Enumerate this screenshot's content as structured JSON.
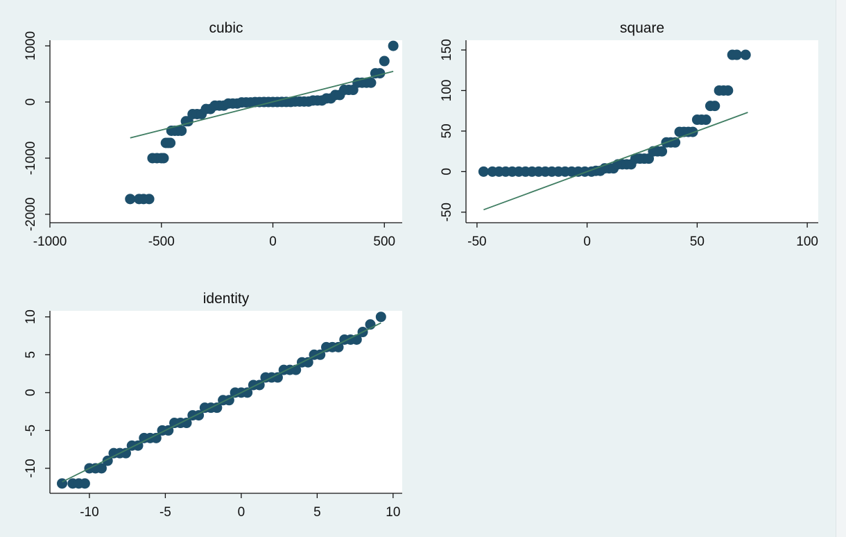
{
  "chart_data": [
    {
      "type": "scatter",
      "title": "cubic",
      "xlim": [
        -1000,
        580
      ],
      "ylim": [
        -2150,
        1100
      ],
      "x_ticks": [
        -1000,
        -500,
        0,
        500
      ],
      "y_ticks": [
        -2000,
        -1000,
        0,
        1000
      ],
      "marker_color": "#1d4f6b",
      "line_color": "#3f7d62",
      "fit_line": {
        "x": [
          -640,
          540
        ],
        "y": [
          -640,
          545
        ]
      },
      "points": {
        "x": [
          -640,
          -600,
          -580,
          -555,
          -540,
          -520,
          -500,
          -490,
          -480,
          -470,
          -460,
          -455,
          -440,
          -425,
          -410,
          -390,
          -380,
          -360,
          -340,
          -320,
          -300,
          -280,
          -260,
          -240,
          -220,
          -200,
          -180,
          -160,
          -140,
          -120,
          -100,
          -80,
          -60,
          -40,
          -20,
          0,
          20,
          40,
          60,
          80,
          100,
          120,
          140,
          160,
          180,
          200,
          220,
          240,
          260,
          280,
          300,
          320,
          340,
          360,
          380,
          400,
          420,
          440,
          460,
          480,
          500,
          540
        ],
        "y": [
          -1728,
          -1728,
          -1728,
          -1728,
          -1000,
          -1000,
          -1000,
          -1000,
          -729,
          -729,
          -729,
          -512,
          -512,
          -512,
          -512,
          -343,
          -343,
          -216,
          -216,
          -216,
          -125,
          -125,
          -64,
          -64,
          -64,
          -27,
          -27,
          -27,
          -8,
          -8,
          -8,
          -1,
          -1,
          0,
          0,
          0,
          0,
          1,
          1,
          1,
          8,
          8,
          8,
          8,
          27,
          27,
          27,
          64,
          64,
          125,
          125,
          216,
          216,
          216,
          343,
          343,
          343,
          343,
          512,
          512,
          729,
          1000
        ]
      }
    },
    {
      "type": "scatter",
      "title": "square",
      "xlim": [
        -55,
        105
      ],
      "ylim": [
        -63,
        162
      ],
      "x_ticks": [
        -50,
        0,
        50,
        100
      ],
      "y_ticks": [
        -50,
        0,
        50,
        100,
        150
      ],
      "marker_color": "#1d4f6b",
      "line_color": "#3f7d62",
      "fit_line": {
        "x": [
          -47,
          73
        ],
        "y": [
          -47,
          73
        ]
      },
      "points": {
        "x": [
          -47,
          -43,
          -40,
          -37,
          -34,
          -31,
          -28,
          -25,
          -22,
          -19,
          -16,
          -13,
          -10,
          -7,
          -4,
          -1,
          2,
          4,
          6,
          8,
          10,
          12,
          14,
          16,
          18,
          20,
          22,
          24,
          26,
          28,
          30,
          32,
          34,
          36,
          38,
          40,
          42,
          44,
          46,
          48,
          50,
          52,
          54,
          56,
          58,
          60,
          62,
          64,
          66,
          68,
          72
        ],
        "y": [
          0,
          0,
          0,
          0,
          0,
          0,
          0,
          0,
          0,
          0,
          0,
          0,
          0,
          0,
          0,
          0,
          0,
          1,
          1,
          4,
          4,
          4,
          9,
          9,
          9,
          9,
          16,
          16,
          16,
          16,
          25,
          25,
          25,
          36,
          36,
          36,
          49,
          49,
          49,
          49,
          64,
          64,
          64,
          81,
          81,
          100,
          100,
          100,
          144,
          144,
          144
        ]
      }
    },
    {
      "type": "scatter",
      "title": "identity",
      "xlim": [
        -12.6,
        10.6
      ],
      "ylim": [
        -13.3,
        10.8
      ],
      "x_ticks": [
        -10,
        -5,
        0,
        5,
        10
      ],
      "y_ticks": [
        -10,
        -5,
        0,
        5,
        10
      ],
      "marker_color": "#1d4f6b",
      "line_color": "#3f7d62",
      "fit_line": {
        "x": [
          -11.8,
          9.2
        ],
        "y": [
          -11.8,
          9.2
        ]
      },
      "points": {
        "x": [
          -11.8,
          -11.1,
          -10.7,
          -10.3,
          -10.0,
          -9.6,
          -9.2,
          -8.8,
          -8.4,
          -8.0,
          -7.6,
          -7.2,
          -6.8,
          -6.4,
          -6.0,
          -5.6,
          -5.2,
          -4.8,
          -4.4,
          -4.0,
          -3.6,
          -3.2,
          -2.8,
          -2.4,
          -2.0,
          -1.6,
          -1.2,
          -0.8,
          -0.4,
          0.0,
          0.4,
          0.8,
          1.2,
          1.6,
          2.0,
          2.4,
          2.8,
          3.2,
          3.6,
          4.0,
          4.4,
          4.8,
          5.2,
          5.6,
          6.0,
          6.4,
          6.8,
          7.2,
          7.6,
          8.0,
          8.5,
          9.2
        ],
        "y": [
          -12,
          -12,
          -12,
          -12,
          -10,
          -10,
          -10,
          -9,
          -8,
          -8,
          -8,
          -7,
          -7,
          -6,
          -6,
          -6,
          -5,
          -5,
          -4,
          -4,
          -4,
          -3,
          -3,
          -2,
          -2,
          -2,
          -1,
          -1,
          0,
          0,
          0,
          1,
          1,
          2,
          2,
          2,
          3,
          3,
          3,
          4,
          4,
          5,
          5,
          6,
          6,
          6,
          7,
          7,
          7,
          8,
          9,
          10
        ]
      }
    }
  ]
}
